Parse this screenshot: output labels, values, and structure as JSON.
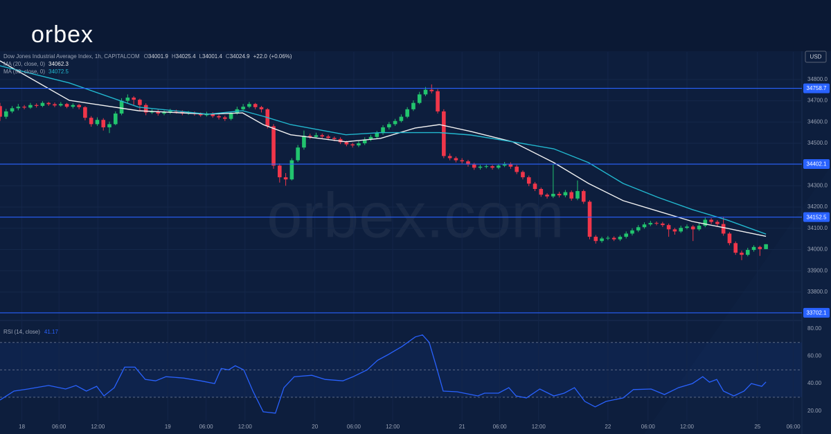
{
  "logo": "orbex",
  "watermark": "orbex.com",
  "currency": "USD",
  "chart_data": [
    {
      "type": "candlestick",
      "title": "Dow Jones Industrial Average Index, 1h, CAPITALCOM",
      "ohlc_header": [
        {
          "name": "O",
          "value": 34001.9
        },
        {
          "name": "H",
          "value": 34025.4
        },
        {
          "name": "L",
          "value": 34001.4
        },
        {
          "name": "C",
          "value": 34024.9
        }
      ],
      "change": {
        "value": 22.0,
        "label": "+22.0"
      },
      "change_pct": {
        "value": 0.06,
        "label": "(+0.06%)"
      },
      "up_color": "#22c46e",
      "down_color": "#f0364a",
      "xlim": [
        0,
        131
      ],
      "ylim": [
        33666,
        34930
      ],
      "yticks": [
        {
          "value": 33800,
          "label": "33800.0"
        },
        {
          "value": 33900,
          "label": "33900.0"
        },
        {
          "value": 34000,
          "label": "34000.0"
        },
        {
          "value": 34100,
          "label": "34100.0"
        },
        {
          "value": 34200,
          "label": "34200.0"
        },
        {
          "value": 34300,
          "label": "34300.0"
        },
        {
          "value": 34400,
          "label": "34400.0"
        },
        {
          "value": 34500,
          "label": "34500.0"
        },
        {
          "value": 34600,
          "label": "34600.0"
        },
        {
          "value": 34700,
          "label": "34700.0"
        },
        {
          "value": 34800,
          "label": "34800.0"
        }
      ],
      "levels": [
        34758.7,
        34402.1,
        34152.5,
        33702.1
      ],
      "level_color": "#2962ff",
      "open": [
        34675,
        34625,
        34650,
        34665,
        34672,
        34668,
        34680,
        34676,
        34690,
        34684,
        34678,
        34685,
        34672,
        34680,
        34670,
        34620,
        34590,
        34610,
        34575,
        34590,
        34640,
        34700,
        34715,
        34705,
        34680,
        34645,
        34650,
        34640,
        34645,
        34652,
        34648,
        34640,
        34645,
        34638,
        34632,
        34640,
        34628,
        34622,
        34615,
        34640,
        34660,
        34672,
        34685,
        34670,
        34660,
        34580,
        34395,
        34340,
        34330,
        34420,
        34480,
        34535,
        34530,
        34538,
        34532,
        34525,
        34520,
        34505,
        34495,
        34490,
        34500,
        34518,
        34530,
        34548,
        34575,
        34590,
        34605,
        34625,
        34660,
        34690,
        34730,
        34752,
        34745,
        34650,
        34440,
        34430,
        34420,
        34415,
        34400,
        34385,
        34390,
        34392,
        34385,
        34395,
        34402,
        34390,
        34365,
        34340,
        34310,
        34285,
        34258,
        34250,
        34262,
        34255,
        34270,
        34240,
        34275,
        34225,
        34060,
        34040,
        34052,
        34055,
        34048,
        34060,
        34075,
        34090,
        34105,
        34118,
        34125,
        34122,
        34115,
        34095,
        34085,
        34102,
        34108,
        34095,
        34112,
        34140,
        34130,
        34120,
        34075,
        34030,
        33985,
        33975,
        33998,
        34012,
        34001.9
      ],
      "high": [
        34690,
        34662,
        34675,
        34685,
        34680,
        34690,
        34688,
        34698,
        34695,
        34692,
        34694,
        34690,
        34688,
        34686,
        34675,
        34628,
        34622,
        34618,
        34602,
        34650,
        34712,
        34730,
        34722,
        34710,
        34688,
        34660,
        34658,
        34655,
        34662,
        34658,
        34655,
        34652,
        34650,
        34645,
        34648,
        34646,
        34635,
        34630,
        34650,
        34672,
        34685,
        34695,
        34690,
        34676,
        34665,
        34590,
        34405,
        34360,
        34430,
        34492,
        34560,
        34545,
        34550,
        34546,
        34540,
        34532,
        34528,
        34512,
        34502,
        34510,
        34528,
        34540,
        34558,
        34585,
        34600,
        34615,
        34636,
        34670,
        34702,
        34742,
        34765,
        34777,
        34755,
        34660,
        34452,
        34438,
        34430,
        34422,
        34408,
        34398,
        34400,
        34398,
        34404,
        34412,
        34410,
        34398,
        34372,
        34348,
        34318,
        34292,
        34265,
        34400,
        34272,
        34280,
        34278,
        34325,
        34282,
        34232,
        34068,
        34060,
        34064,
        34062,
        34068,
        34085,
        34100,
        34115,
        34128,
        34135,
        34132,
        34130,
        34122,
        34102,
        34112,
        34118,
        34115,
        34125,
        34150,
        34148,
        34138,
        34155,
        34082,
        34038,
        33995,
        34008,
        34020,
        34018,
        34025.4
      ],
      "low": [
        34605,
        34615,
        34642,
        34655,
        34660,
        34662,
        34668,
        34670,
        34676,
        34670,
        34672,
        34665,
        34664,
        34660,
        34608,
        34578,
        34582,
        34560,
        34548,
        34585,
        34632,
        34690,
        34680,
        34650,
        34632,
        34638,
        34630,
        34632,
        34638,
        34640,
        34632,
        34634,
        34630,
        34625,
        34626,
        34620,
        34612,
        34605,
        34608,
        34635,
        34655,
        34665,
        34660,
        34645,
        34570,
        34380,
        34315,
        34300,
        34325,
        34412,
        34470,
        34520,
        34522,
        34524,
        34515,
        34510,
        34496,
        34486,
        34480,
        34482,
        34492,
        34510,
        34522,
        34540,
        34565,
        34582,
        34598,
        34618,
        34652,
        34684,
        34722,
        34735,
        34640,
        34430,
        34420,
        34410,
        34405,
        34390,
        34375,
        34376,
        34382,
        34376,
        34378,
        34388,
        34380,
        34355,
        34330,
        34298,
        34275,
        34248,
        34240,
        34242,
        34245,
        34246,
        34230,
        34232,
        34215,
        34048,
        34028,
        34032,
        34044,
        34040,
        34040,
        34052,
        34066,
        34082,
        34098,
        34110,
        34114,
        34106,
        34060,
        34070,
        34078,
        34095,
        34040,
        34088,
        34105,
        34120,
        34110,
        34065,
        34020,
        33975,
        33950,
        33968,
        33990,
        33970,
        34001.4
      ],
      "close": [
        34625,
        34650,
        34665,
        34672,
        34668,
        34680,
        34676,
        34690,
        34684,
        34678,
        34685,
        34672,
        34680,
        34670,
        34620,
        34590,
        34610,
        34575,
        34590,
        34640,
        34700,
        34715,
        34705,
        34680,
        34645,
        34650,
        34640,
        34645,
        34652,
        34648,
        34640,
        34645,
        34638,
        34632,
        34640,
        34628,
        34622,
        34615,
        34640,
        34660,
        34672,
        34685,
        34670,
        34660,
        34580,
        34395,
        34340,
        34330,
        34420,
        34480,
        34535,
        34530,
        34538,
        34532,
        34525,
        34520,
        34505,
        34495,
        34490,
        34500,
        34518,
        34530,
        34548,
        34575,
        34590,
        34605,
        34625,
        34660,
        34690,
        34730,
        34752,
        34745,
        34650,
        34440,
        34430,
        34420,
        34415,
        34400,
        34385,
        34390,
        34392,
        34385,
        34395,
        34402,
        34390,
        34365,
        34340,
        34310,
        34285,
        34258,
        34250,
        34262,
        34255,
        34270,
        34240,
        34275,
        34225,
        34060,
        34040,
        34052,
        34055,
        34048,
        34060,
        34075,
        34090,
        34105,
        34118,
        34125,
        34122,
        34115,
        34095,
        34085,
        34102,
        34108,
        34095,
        34112,
        34140,
        34130,
        34120,
        34075,
        34030,
        33985,
        33975,
        33998,
        34012,
        34001.9,
        34024.9
      ],
      "series": [
        {
          "name": "MA (20, close, 0)",
          "color": "#f2f2f2",
          "x": [
            0,
            11.4,
            22.8,
            34.2,
            39.9,
            43.3,
            47.8,
            56.9,
            62.6,
            68.3,
            72.3,
            77.4,
            84.3,
            91.1,
            96.8,
            102.5,
            108.2,
            113.9,
            119.6,
            126
          ],
          "values": [
            34888,
            34702,
            34653,
            34637,
            34643,
            34588,
            34540,
            34507,
            34523,
            34572,
            34588,
            34556,
            34507,
            34409,
            34311,
            34230,
            34181,
            34132,
            34100,
            34062.3
          ]
        },
        {
          "name": "MA (50, close, 0)",
          "color": "#22b8cf",
          "x": [
            0,
            11.4,
            22.8,
            34.2,
            39.9,
            43.3,
            47.8,
            56.9,
            62.6,
            68.3,
            72.3,
            77.4,
            84.3,
            91.1,
            96.8,
            102.5,
            108.2,
            113.9,
            119.6,
            126
          ],
          "values": [
            34865,
            34784,
            34670,
            34637,
            34653,
            34627,
            34588,
            34540,
            34550,
            34550,
            34550,
            34539,
            34507,
            34474,
            34409,
            34311,
            34246,
            34188,
            34139,
            34072.5
          ]
        }
      ]
    },
    {
      "type": "line",
      "title": "RSI (14, close)",
      "xlim": [
        0,
        131
      ],
      "ylim": [
        12.8,
        85
      ],
      "xticks": [
        {
          "value": 3.6,
          "label": "18"
        },
        {
          "value": 9.7,
          "label": "06:00"
        },
        {
          "value": 16.1,
          "label": "12:00"
        },
        {
          "value": 27.6,
          "label": "19"
        },
        {
          "value": 33.9,
          "label": "06:00"
        },
        {
          "value": 40.3,
          "label": "12:00"
        },
        {
          "value": 51.8,
          "label": "20"
        },
        {
          "value": 58.2,
          "label": "06:00"
        },
        {
          "value": 64.6,
          "label": "12:00"
        },
        {
          "value": 76,
          "label": "21"
        },
        {
          "value": 82.2,
          "label": "06:00"
        },
        {
          "value": 88.6,
          "label": "12:00"
        },
        {
          "value": 100,
          "label": "22"
        },
        {
          "value": 106.6,
          "label": "06:00"
        },
        {
          "value": 113,
          "label": "12:00"
        },
        {
          "value": 124.6,
          "label": "25"
        },
        {
          "value": 130.5,
          "label": "06:00"
        }
      ],
      "yticks": [
        {
          "value": 20,
          "label": "20.00"
        },
        {
          "value": 40,
          "label": "40.00"
        },
        {
          "value": 60,
          "label": "60.00"
        },
        {
          "value": 80,
          "label": "80.00"
        }
      ],
      "bands": [
        70,
        50,
        30
      ],
      "series": [
        {
          "name": "RSI",
          "color": "#2962ff",
          "x": [
            0,
            2.3,
            4.6,
            8,
            10.8,
            12.5,
            14.2,
            15.9,
            17.1,
            18.8,
            20.5,
            22.2,
            23.9,
            25.6,
            27.3,
            30.2,
            33,
            35.3,
            36.4,
            37.6,
            38.7,
            40.1,
            41.6,
            43.3,
            45.3,
            46.7,
            48.4,
            51.3,
            53.5,
            56.4,
            58.1,
            60.4,
            62.1,
            63.8,
            66.1,
            68.3,
            69.5,
            70.6,
            71.8,
            72.9,
            75.2,
            78.6,
            79.7,
            82,
            83.7,
            84.9,
            86.6,
            88.8,
            91.1,
            92.8,
            94.5,
            96.2,
            97.9,
            99.7,
            102.5,
            104.2,
            107.1,
            109.3,
            111.6,
            113.9,
            115.6,
            116.7,
            117.9,
            119,
            120.7,
            122.4,
            123.6,
            125.3,
            126
          ],
          "values": [
            28,
            34.5,
            36,
            38.6,
            36,
            38.6,
            34.5,
            38,
            31,
            37,
            52,
            52,
            43,
            42,
            45,
            44,
            42,
            40,
            51,
            50,
            53,
            50,
            34.5,
            19.4,
            18.4,
            37,
            45,
            46,
            43,
            42,
            45,
            50,
            57,
            61,
            67,
            74,
            75.5,
            70,
            52,
            34.5,
            34,
            31,
            33,
            33,
            37,
            31,
            29.5,
            36,
            31,
            33,
            37,
            27,
            23,
            27,
            29.5,
            35.6,
            36,
            32,
            37,
            40,
            45,
            41,
            43,
            34.5,
            31,
            34.5,
            40,
            38,
            41.17
          ]
        }
      ]
    }
  ]
}
